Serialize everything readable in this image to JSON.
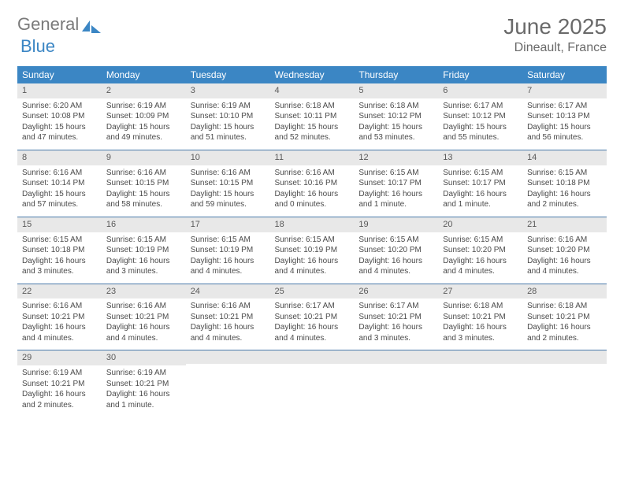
{
  "logo": {
    "text1": "General",
    "text2": "Blue"
  },
  "title": "June 2025",
  "location": "Dineault, France",
  "colors": {
    "header_bg": "#3b86c4",
    "header_text": "#ffffff",
    "daynum_bg": "#e8e8e8",
    "border": "#4a7aaa",
    "text": "#4a4a4a",
    "title_text": "#6a6a6a"
  },
  "weekdays": [
    "Sunday",
    "Monday",
    "Tuesday",
    "Wednesday",
    "Thursday",
    "Friday",
    "Saturday"
  ],
  "weeks": [
    [
      {
        "n": "1",
        "sr": "6:20 AM",
        "ss": "10:08 PM",
        "dl": "15 hours and 47 minutes."
      },
      {
        "n": "2",
        "sr": "6:19 AM",
        "ss": "10:09 PM",
        "dl": "15 hours and 49 minutes."
      },
      {
        "n": "3",
        "sr": "6:19 AM",
        "ss": "10:10 PM",
        "dl": "15 hours and 51 minutes."
      },
      {
        "n": "4",
        "sr": "6:18 AM",
        "ss": "10:11 PM",
        "dl": "15 hours and 52 minutes."
      },
      {
        "n": "5",
        "sr": "6:18 AM",
        "ss": "10:12 PM",
        "dl": "15 hours and 53 minutes."
      },
      {
        "n": "6",
        "sr": "6:17 AM",
        "ss": "10:12 PM",
        "dl": "15 hours and 55 minutes."
      },
      {
        "n": "7",
        "sr": "6:17 AM",
        "ss": "10:13 PM",
        "dl": "15 hours and 56 minutes."
      }
    ],
    [
      {
        "n": "8",
        "sr": "6:16 AM",
        "ss": "10:14 PM",
        "dl": "15 hours and 57 minutes."
      },
      {
        "n": "9",
        "sr": "6:16 AM",
        "ss": "10:15 PM",
        "dl": "15 hours and 58 minutes."
      },
      {
        "n": "10",
        "sr": "6:16 AM",
        "ss": "10:15 PM",
        "dl": "15 hours and 59 minutes."
      },
      {
        "n": "11",
        "sr": "6:16 AM",
        "ss": "10:16 PM",
        "dl": "16 hours and 0 minutes."
      },
      {
        "n": "12",
        "sr": "6:15 AM",
        "ss": "10:17 PM",
        "dl": "16 hours and 1 minute."
      },
      {
        "n": "13",
        "sr": "6:15 AM",
        "ss": "10:17 PM",
        "dl": "16 hours and 1 minute."
      },
      {
        "n": "14",
        "sr": "6:15 AM",
        "ss": "10:18 PM",
        "dl": "16 hours and 2 minutes."
      }
    ],
    [
      {
        "n": "15",
        "sr": "6:15 AM",
        "ss": "10:18 PM",
        "dl": "16 hours and 3 minutes."
      },
      {
        "n": "16",
        "sr": "6:15 AM",
        "ss": "10:19 PM",
        "dl": "16 hours and 3 minutes."
      },
      {
        "n": "17",
        "sr": "6:15 AM",
        "ss": "10:19 PM",
        "dl": "16 hours and 4 minutes."
      },
      {
        "n": "18",
        "sr": "6:15 AM",
        "ss": "10:19 PM",
        "dl": "16 hours and 4 minutes."
      },
      {
        "n": "19",
        "sr": "6:15 AM",
        "ss": "10:20 PM",
        "dl": "16 hours and 4 minutes."
      },
      {
        "n": "20",
        "sr": "6:15 AM",
        "ss": "10:20 PM",
        "dl": "16 hours and 4 minutes."
      },
      {
        "n": "21",
        "sr": "6:16 AM",
        "ss": "10:20 PM",
        "dl": "16 hours and 4 minutes."
      }
    ],
    [
      {
        "n": "22",
        "sr": "6:16 AM",
        "ss": "10:21 PM",
        "dl": "16 hours and 4 minutes."
      },
      {
        "n": "23",
        "sr": "6:16 AM",
        "ss": "10:21 PM",
        "dl": "16 hours and 4 minutes."
      },
      {
        "n": "24",
        "sr": "6:16 AM",
        "ss": "10:21 PM",
        "dl": "16 hours and 4 minutes."
      },
      {
        "n": "25",
        "sr": "6:17 AM",
        "ss": "10:21 PM",
        "dl": "16 hours and 4 minutes."
      },
      {
        "n": "26",
        "sr": "6:17 AM",
        "ss": "10:21 PM",
        "dl": "16 hours and 3 minutes."
      },
      {
        "n": "27",
        "sr": "6:18 AM",
        "ss": "10:21 PM",
        "dl": "16 hours and 3 minutes."
      },
      {
        "n": "28",
        "sr": "6:18 AM",
        "ss": "10:21 PM",
        "dl": "16 hours and 2 minutes."
      }
    ],
    [
      {
        "n": "29",
        "sr": "6:19 AM",
        "ss": "10:21 PM",
        "dl": "16 hours and 2 minutes."
      },
      {
        "n": "30",
        "sr": "6:19 AM",
        "ss": "10:21 PM",
        "dl": "16 hours and 1 minute."
      },
      null,
      null,
      null,
      null,
      null
    ]
  ],
  "labels": {
    "sunrise": "Sunrise:",
    "sunset": "Sunset:",
    "daylight": "Daylight:"
  }
}
